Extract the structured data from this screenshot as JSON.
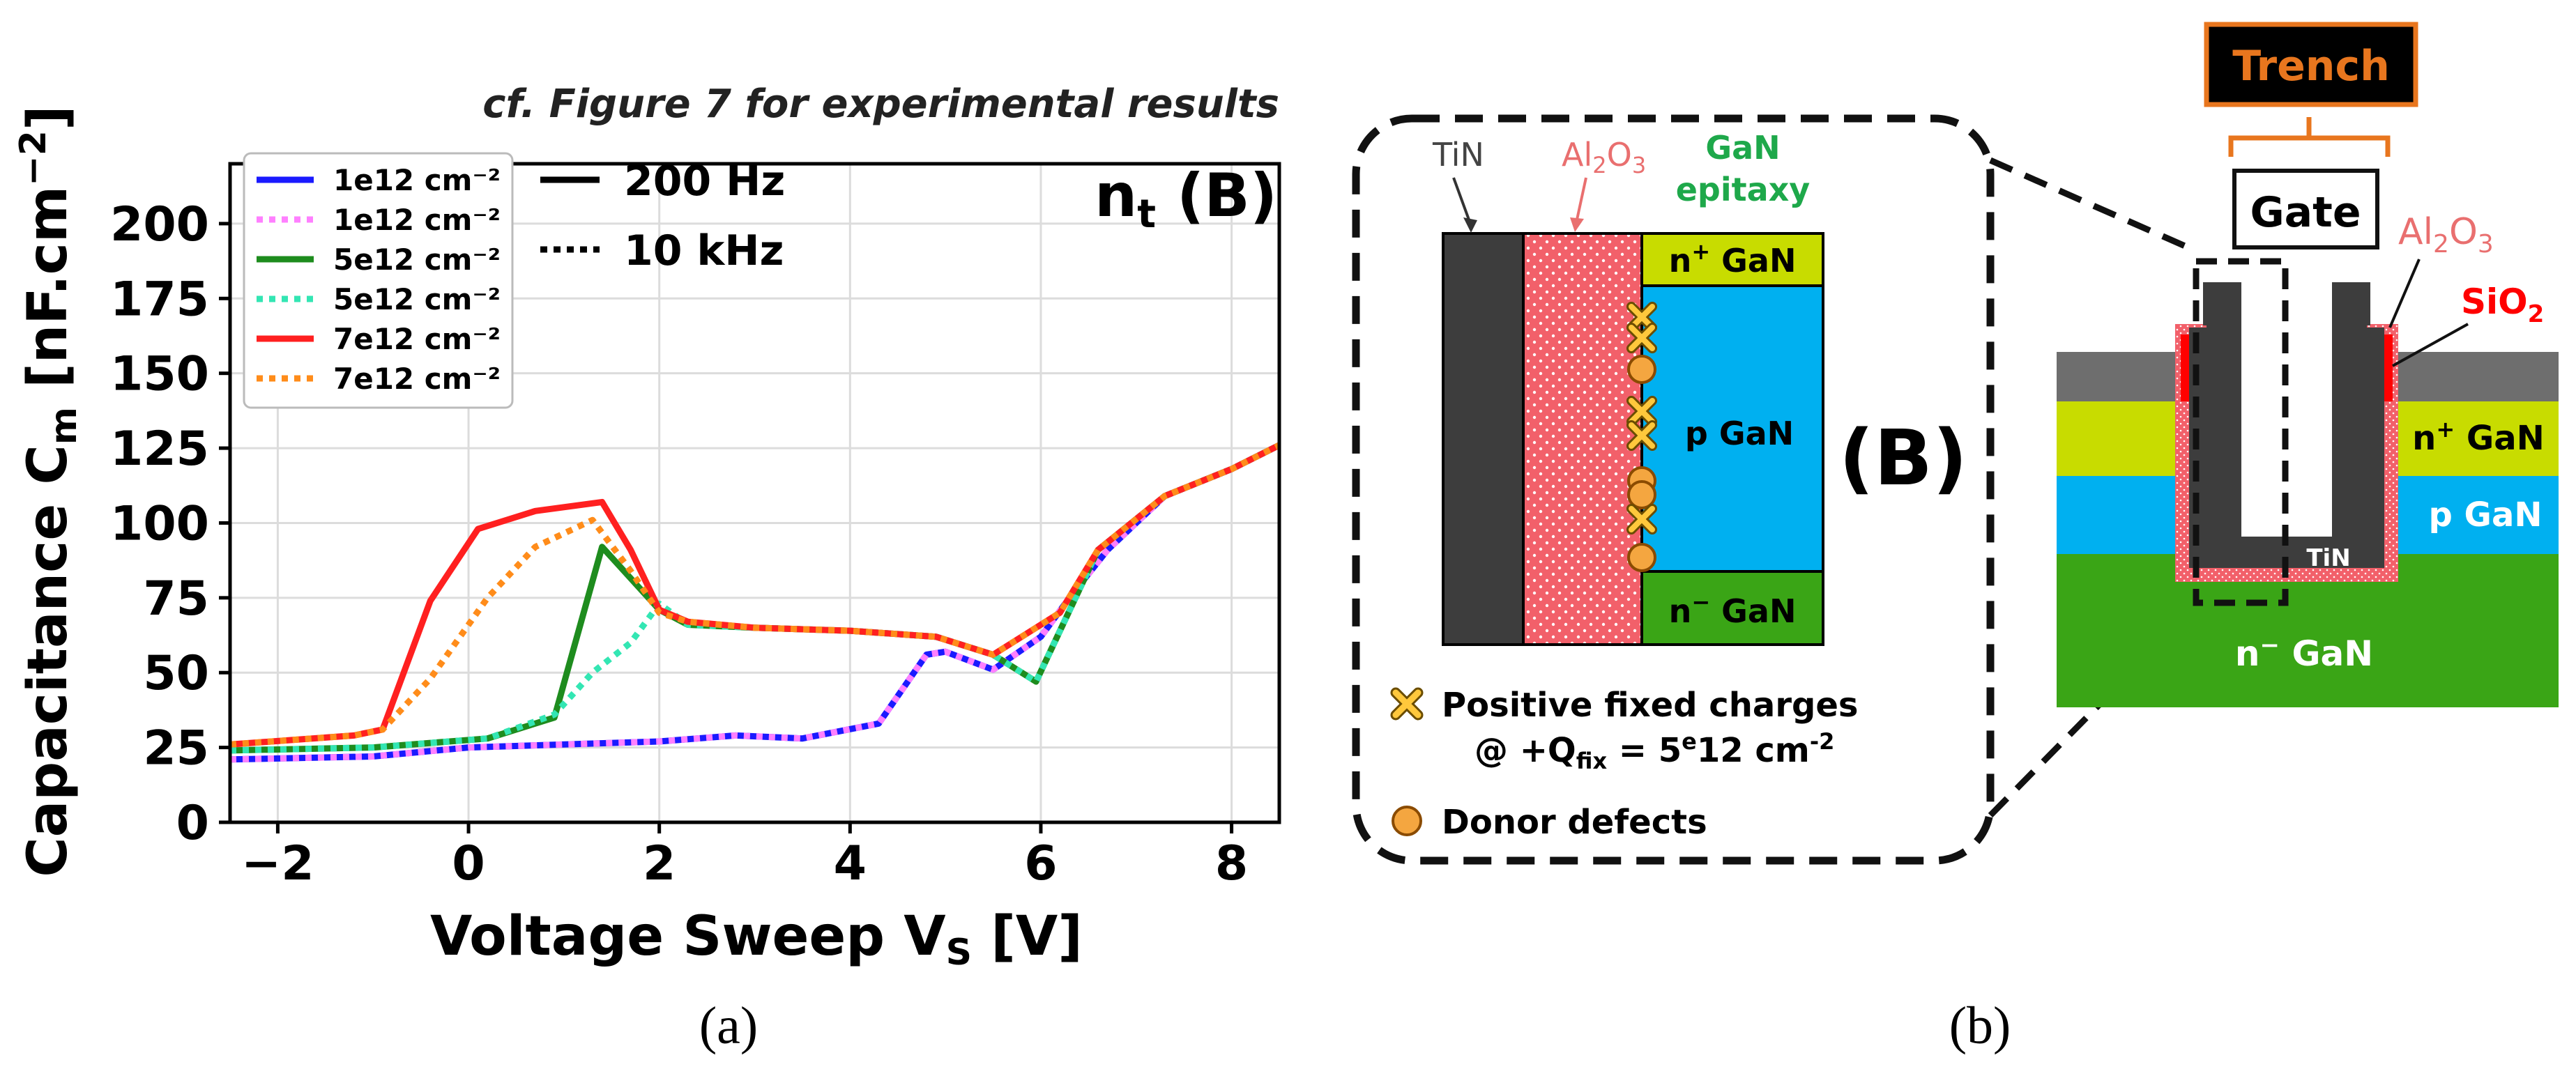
{
  "panel_a": {
    "note": "cf. Figure 7 for experimental results",
    "annotation_main": "n",
    "annotation_sub": "t",
    "annotation_tail": " (B)",
    "caption": "(a)",
    "line_styles": [
      {
        "label": "200 Hz",
        "style": "solid"
      },
      {
        "label": "10 kHz",
        "style": "dotted"
      }
    ],
    "legend": [
      {
        "label": "1e12 cm⁻²",
        "color": "#1a1aff",
        "style": "solid"
      },
      {
        "label": "1e12 cm⁻²",
        "color": "#ff80ff",
        "style": "dotted"
      },
      {
        "label": "5e12 cm⁻²",
        "color": "#1e8c1e",
        "style": "solid"
      },
      {
        "label": "5e12 cm⁻²",
        "color": "#33e6b3",
        "style": "dotted"
      },
      {
        "label": "7e12 cm⁻²",
        "color": "#ff2020",
        "style": "solid"
      },
      {
        "label": "7e12 cm⁻²",
        "color": "#ff8c1a",
        "style": "dotted"
      }
    ]
  },
  "chart_data": {
    "type": "line",
    "title": "",
    "xlabel_main": "Voltage Sweep  V",
    "xlabel_sub": "S",
    "xlabel_tail": " [V]",
    "ylabel_main": "Capacitance  C",
    "ylabel_sub": "m",
    "ylabel_tail": " [nF.cm",
    "ylabel_sup": "−2",
    "ylabel_end": "]",
    "xlim": [
      -2.5,
      8.5
    ],
    "ylim": [
      0,
      220
    ],
    "xticks": [
      -2,
      0,
      2,
      4,
      6,
      8
    ],
    "yticks": [
      0,
      25,
      50,
      75,
      100,
      125,
      150,
      175,
      200
    ],
    "grid": true,
    "series": [
      {
        "name": "1e12 cm⁻² (200 Hz)",
        "color": "#1a1aff",
        "style": "solid",
        "x": [
          -2.5,
          -1,
          0,
          1,
          2,
          2.8,
          3.5,
          4.3,
          4.8,
          5.0,
          5.5,
          6.0,
          6.3,
          6.7,
          7.3,
          8.0,
          8.5
        ],
        "y": [
          21,
          22,
          25,
          26,
          27,
          29,
          28,
          33,
          56,
          57,
          51,
          62,
          75,
          91,
          109,
          118,
          126
        ]
      },
      {
        "name": "1e12 cm⁻² (10 kHz)",
        "color": "#ff80ff",
        "style": "dotted",
        "x": [
          -2.5,
          -1,
          0,
          1,
          2,
          2.8,
          3.5,
          4.3,
          4.8,
          5.0,
          5.5,
          6.0,
          6.3,
          6.7,
          7.3,
          8.0,
          8.5
        ],
        "y": [
          21,
          22,
          25,
          26,
          27,
          29,
          28,
          33,
          56,
          57,
          51,
          62,
          75,
          91,
          109,
          118,
          126
        ]
      },
      {
        "name": "5e12 cm⁻² (200 Hz)",
        "color": "#1e8c1e",
        "style": "solid",
        "x": [
          -2.5,
          -1,
          0.2,
          0.9,
          1.4,
          1.6,
          2.0,
          2.3,
          3,
          4,
          4.9,
          5.5,
          5.95,
          6.6,
          7.3,
          8.0,
          8.5
        ],
        "y": [
          24,
          25,
          28,
          35,
          92,
          85,
          71,
          66,
          65,
          64,
          62,
          56,
          47,
          91,
          109,
          118,
          126
        ]
      },
      {
        "name": "5e12 cm⁻² (10 kHz)",
        "color": "#33e6b3",
        "style": "dotted",
        "x": [
          -2.5,
          -1,
          0.2,
          0.9,
          1.3,
          1.7,
          2.0,
          2.3,
          3,
          4,
          4.9,
          5.5,
          5.95,
          6.6,
          7.3,
          8.0,
          8.5
        ],
        "y": [
          24,
          25,
          28,
          36,
          50,
          60,
          73,
          66,
          65,
          64,
          62,
          56,
          47,
          91,
          109,
          118,
          126
        ]
      },
      {
        "name": "7e12 cm⁻² (200 Hz)",
        "color": "#ff2020",
        "style": "solid",
        "x": [
          -2.5,
          -1.2,
          -0.9,
          -0.4,
          0.1,
          0.7,
          1.4,
          1.7,
          2.0,
          2.3,
          3,
          4,
          4.9,
          5.5,
          6.2,
          6.6,
          7.3,
          8.0,
          8.5
        ],
        "y": [
          26,
          29,
          31,
          74,
          98,
          104,
          107,
          91,
          71,
          67,
          65,
          64,
          62,
          56,
          70,
          91,
          109,
          118,
          126
        ]
      },
      {
        "name": "7e12 cm⁻² (10 kHz)",
        "color": "#ff8c1a",
        "style": "dotted",
        "x": [
          -2.5,
          -1.2,
          -0.9,
          -0.4,
          0.2,
          0.7,
          1.3,
          1.7,
          2.0,
          2.3,
          3,
          4,
          4.9,
          5.5,
          6.2,
          6.6,
          7.3,
          8.0,
          8.5
        ],
        "y": [
          26,
          29,
          31,
          48,
          75,
          92,
          101,
          84,
          70,
          67,
          65,
          64,
          62,
          56,
          70,
          91,
          109,
          118,
          126
        ]
      }
    ]
  },
  "panel_b": {
    "caption": "(b)",
    "inset": {
      "tin_label": "TiN",
      "al2o3_main": "Al",
      "al2o3_sub1": "2",
      "al2o3_mid": "O",
      "al2o3_sub2": "3",
      "gan_epi_line1": "GaN",
      "gan_epi_line2": "epitaxy",
      "nplus_main": "n",
      "nplus_sup": "+",
      "nplus_tail": " GaN",
      "p_gan": "p GaN",
      "nminus_main": "n",
      "nminus_sup": "−",
      "nminus_tail": " GaN",
      "label_b": "(B)",
      "legend_fixed_1": "Positive fixed charges",
      "legend_fixed_2a": "@ +Q",
      "legend_fixed_2sub": "fix",
      "legend_fixed_2b": " = 5",
      "legend_fixed_2sup": "e",
      "legend_fixed_2c": "12 cm",
      "legend_fixed_2sup2": "-2",
      "legend_donor": "Donor defects"
    },
    "device": {
      "trench": "Trench",
      "gate": "Gate",
      "al2o3_main": "Al",
      "al2o3_sub1": "2",
      "al2o3_mid": "O",
      "al2o3_sub2": "3",
      "sio2_main": "SiO",
      "sio2_sub": "2",
      "nplus_main": "n",
      "nplus_sup": "+",
      "nplus_tail": " GaN",
      "p_gan": "p GaN",
      "tin": "TiN",
      "nminus_main": "n",
      "nminus_sup": "−",
      "nminus_tail": " GaN"
    },
    "colors": {
      "tin": "#3d3d3d",
      "al2o3": "#f2606a",
      "nplus": "#c8dc00",
      "pgan": "#00b0f0",
      "nminus": "#3aa516",
      "sio2": "#ff0000",
      "trench_box": "#e8761e",
      "oxide_text": "#e96f6f",
      "sio2_text": "#ff0000",
      "epi_text": "#1ea84a"
    }
  }
}
